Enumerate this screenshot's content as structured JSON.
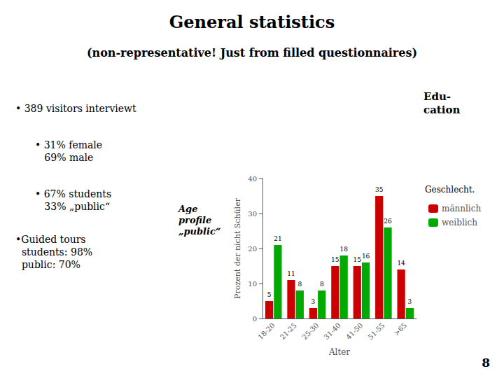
{
  "chart_data": {
    "type": "bar",
    "title": "General statistics",
    "subtitle": "(non-representative! Just from filled questionnaires)",
    "annotations": [
      "Edu-\ncation",
      "• 389 visitors interviewt",
      "• 31% female\n   69% male",
      "• 67% students\n   33% „public“",
      "•Guided tours\n  students: 98%\n  public: 70%",
      "Age\nprofile\n„public“",
      "8"
    ],
    "categories": [
      "18-20",
      "21-25",
      "25-30",
      "31-40",
      "41-50",
      "51-55",
      ">65"
    ],
    "series": [
      {
        "name": "männlich",
        "color": "#cc0000",
        "values": [
          5,
          11,
          3,
          15,
          15,
          35,
          14
        ]
      },
      {
        "name": "weiblich",
        "color": "#00aa00",
        "values": [
          21,
          8,
          8,
          18,
          16,
          26,
          3
        ]
      }
    ],
    "xlabel": "Alter",
    "ylabel": "Prozent der nicht Schüler",
    "ylim": [
      0,
      40
    ],
    "yticks": [
      0,
      10,
      20,
      30,
      40
    ],
    "legend": "right",
    "legend_title": "Geschlecht.",
    "data_labels": true,
    "grid": false
  }
}
